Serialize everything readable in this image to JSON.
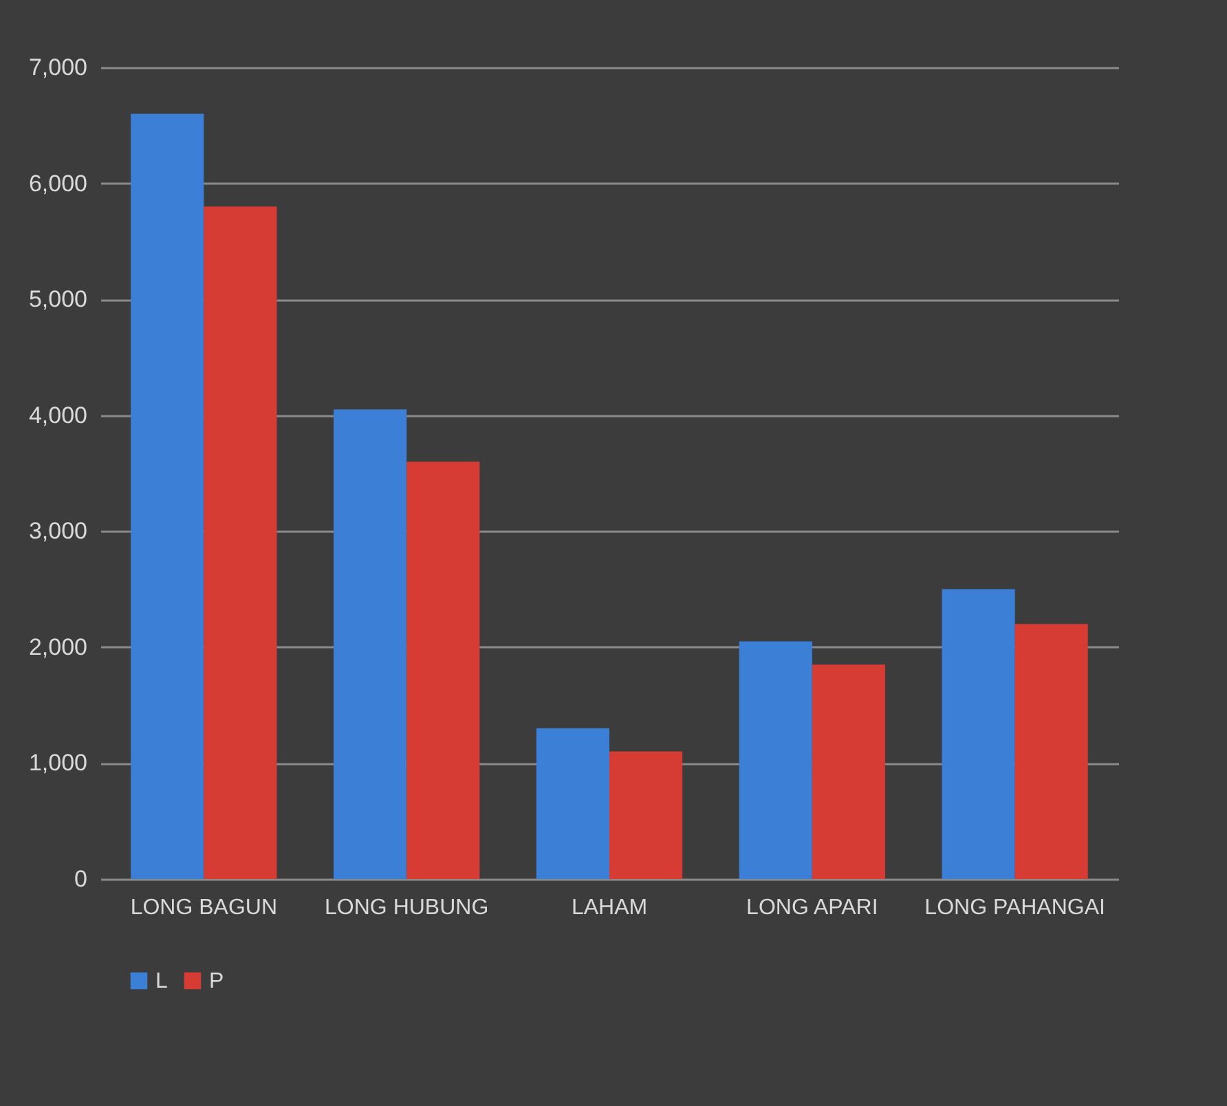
{
  "chart_data": {
    "type": "bar",
    "categories": [
      "LONG BAGUN",
      "LONG HUBUNG",
      "LAHAM",
      "LONG APARI",
      "LONG PAHANGAI"
    ],
    "series": [
      {
        "name": "L",
        "color": "#3c7fd6",
        "values": [
          6600,
          4050,
          1300,
          2050,
          2500
        ]
      },
      {
        "name": "P",
        "color": "#d63b34",
        "values": [
          5800,
          3600,
          1100,
          1850,
          2200
        ]
      }
    ],
    "ylim": [
      0,
      7000
    ],
    "yticks": [
      {
        "value": 0,
        "label": "0"
      },
      {
        "value": 1000,
        "label": "1,000"
      },
      {
        "value": 2000,
        "label": "2,000"
      },
      {
        "value": 3000,
        "label": "3,000"
      },
      {
        "value": 4000,
        "label": "4,000"
      },
      {
        "value": 5000,
        "label": "5,000"
      },
      {
        "value": 6000,
        "label": "6,000"
      },
      {
        "value": 7000,
        "label": "7,000"
      }
    ],
    "grid": "y",
    "legend": "bottom"
  }
}
